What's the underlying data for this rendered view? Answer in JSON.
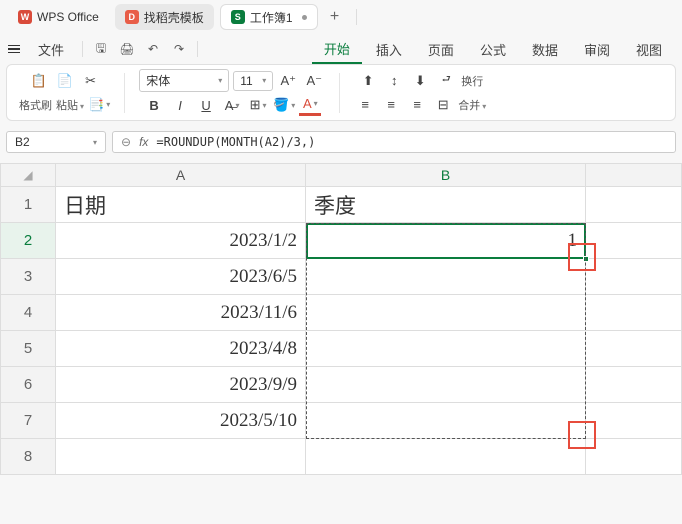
{
  "titlebar": {
    "app_name": "WPS Office",
    "template_tab": "找稻壳模板",
    "workbook_tab": "工作簿1",
    "app_icon_color": "#d94b3a",
    "template_icon_color": "#e85d47",
    "sheet_icon_color": "#0a7d3e",
    "sheet_icon_text": "S"
  },
  "menubar": {
    "file": "文件",
    "items": [
      "开始",
      "插入",
      "页面",
      "公式",
      "数据",
      "审阅",
      "视图"
    ],
    "active_index": 0
  },
  "toolbar": {
    "format_painter": "格式刷",
    "paste": "粘贴",
    "font_name": "宋体",
    "font_size": "11",
    "wrap_text": "换行",
    "merge": "合并"
  },
  "formula_bar": {
    "cell_ref": "B2",
    "formula": "=ROUNDUP(MONTH(A2)/3,)"
  },
  "grid": {
    "col_a": "A",
    "col_b": "B",
    "headers": {
      "a": "日期",
      "b": "季度"
    },
    "rows": [
      {
        "n": "1",
        "a": "日期",
        "b": "季度",
        "is_header": true
      },
      {
        "n": "2",
        "a": "2023/1/2",
        "b": "1"
      },
      {
        "n": "3",
        "a": "2023/6/5",
        "b": ""
      },
      {
        "n": "4",
        "a": "2023/11/6",
        "b": ""
      },
      {
        "n": "5",
        "a": "2023/4/8",
        "b": ""
      },
      {
        "n": "6",
        "a": "2023/9/9",
        "b": ""
      },
      {
        "n": "7",
        "a": "2023/5/10",
        "b": ""
      },
      {
        "n": "8",
        "a": "",
        "b": ""
      }
    ]
  },
  "styling": {
    "accent": "#0a7d3e",
    "highlight_red": "#e74c3c"
  }
}
